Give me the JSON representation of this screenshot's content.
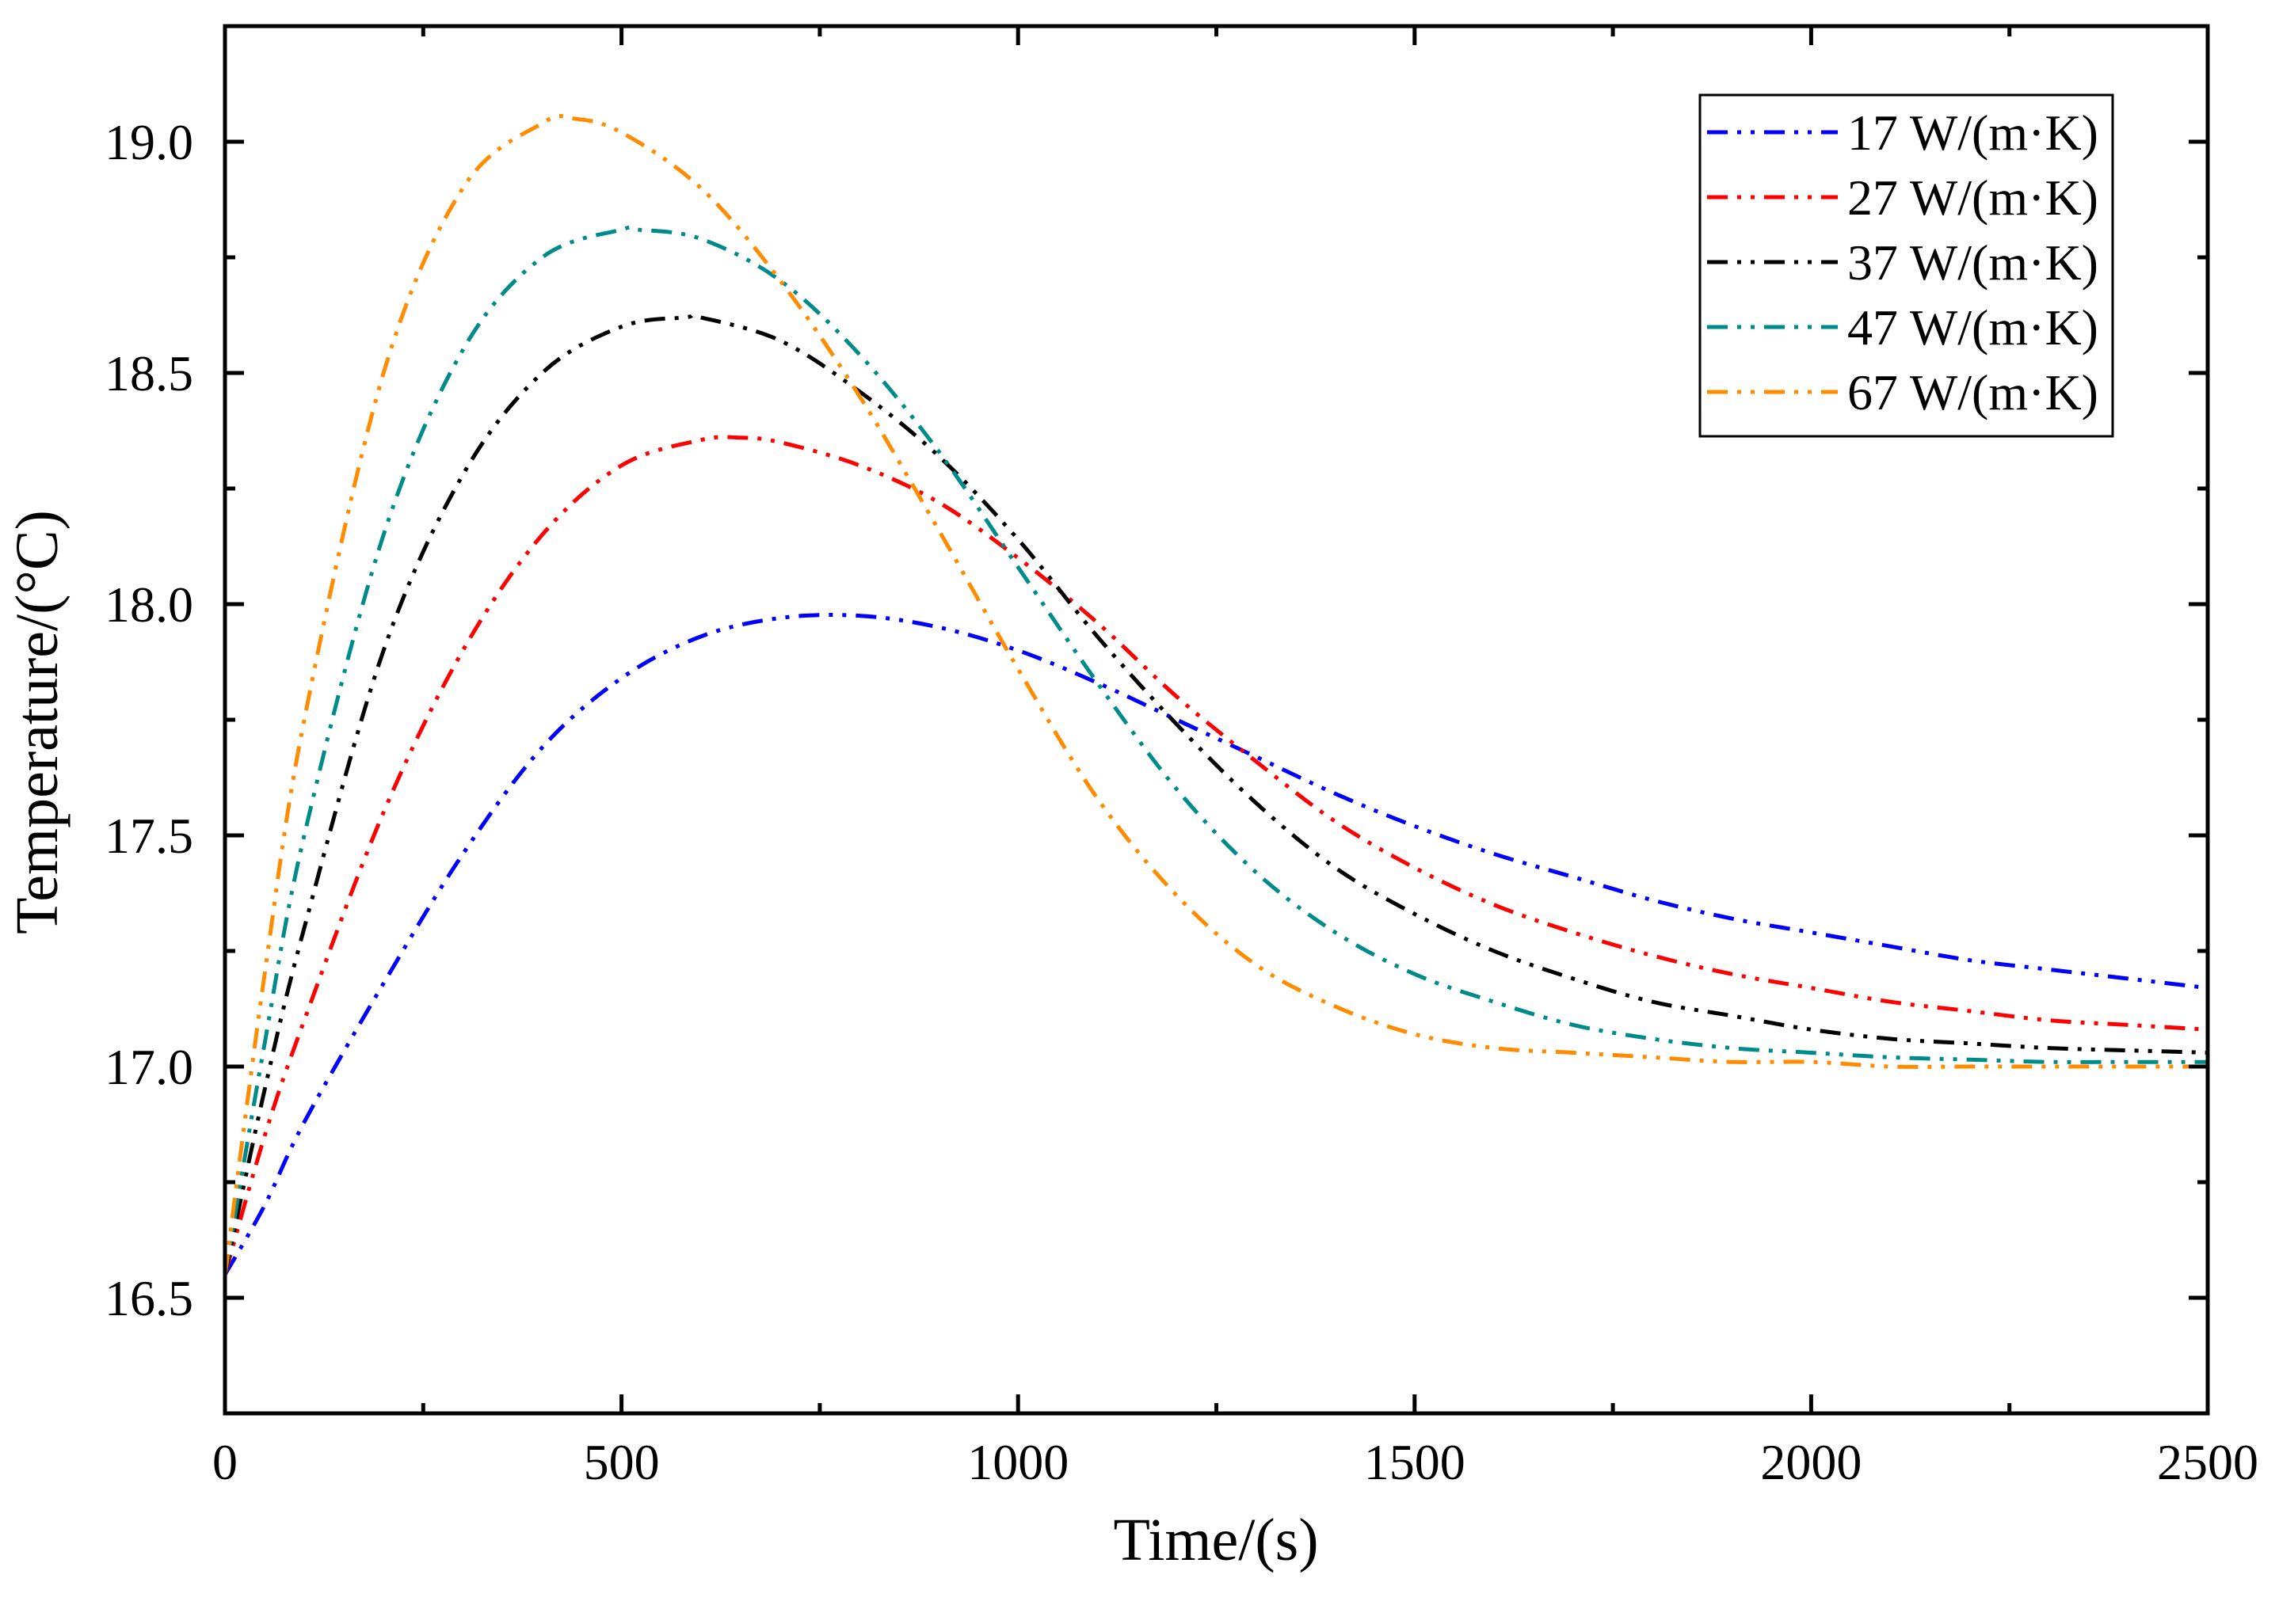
{
  "chart_data": {
    "type": "line",
    "title": "",
    "xlabel": "Time/(s)",
    "ylabel": "Temperature/(°C)",
    "xlim": [
      0,
      2500
    ],
    "ylim": [
      16.25,
      19.25
    ],
    "xticks": [
      0,
      500,
      1000,
      1500,
      2000,
      2500
    ],
    "xtick_labels": [
      "0",
      "500",
      "1000",
      "1500",
      "2000",
      "2500"
    ],
    "yticks": [
      16.5,
      17.0,
      17.5,
      18.0,
      18.5,
      19.0
    ],
    "ytick_labels": [
      "16.5",
      "17.0",
      "17.5",
      "18.0",
      "18.5",
      "19.0"
    ],
    "grid": false,
    "legend_position": "top-right",
    "line_style": "dash-dot",
    "series": [
      {
        "name": "17 W/(m·K)",
        "color": "#0000ff",
        "x": [
          0,
          50,
          100,
          200,
          300,
          400,
          500,
          600,
          700,
          800,
          900,
          1000,
          1100,
          1200,
          1300,
          1400,
          1500,
          1600,
          1700,
          1800,
          1900,
          2000,
          2100,
          2200,
          2300,
          2400,
          2500
        ],
        "y": [
          16.55,
          16.7,
          16.88,
          17.18,
          17.46,
          17.69,
          17.84,
          17.93,
          17.97,
          17.975,
          17.95,
          17.9,
          17.83,
          17.75,
          17.67,
          17.59,
          17.52,
          17.46,
          17.41,
          17.36,
          17.32,
          17.29,
          17.26,
          17.23,
          17.21,
          17.19,
          17.17
        ]
      },
      {
        "name": "27 W/(m·K)",
        "color": "#ff0000",
        "x": [
          0,
          50,
          100,
          200,
          300,
          400,
          500,
          600,
          650,
          700,
          800,
          900,
          1000,
          1100,
          1200,
          1300,
          1400,
          1500,
          1600,
          1700,
          1800,
          1900,
          2000,
          2100,
          2200,
          2300,
          2400,
          2500
        ],
        "y": [
          16.55,
          16.85,
          17.1,
          17.55,
          17.9,
          18.15,
          18.3,
          18.355,
          18.36,
          18.35,
          18.3,
          18.22,
          18.1,
          17.96,
          17.8,
          17.66,
          17.53,
          17.43,
          17.35,
          17.29,
          17.24,
          17.2,
          17.17,
          17.14,
          17.12,
          17.1,
          17.09,
          17.08
        ]
      },
      {
        "name": "37 W/(m·K)",
        "color": "#000000",
        "x": [
          0,
          50,
          100,
          200,
          300,
          400,
          500,
          580,
          600,
          700,
          800,
          900,
          1000,
          1100,
          1200,
          1300,
          1400,
          1500,
          1600,
          1700,
          1800,
          1900,
          2000,
          2100,
          2200,
          2300,
          2400,
          2500
        ],
        "y": [
          16.55,
          16.95,
          17.3,
          17.9,
          18.28,
          18.5,
          18.6,
          18.62,
          18.62,
          18.57,
          18.46,
          18.32,
          18.14,
          17.93,
          17.74,
          17.57,
          17.43,
          17.33,
          17.25,
          17.19,
          17.14,
          17.11,
          17.08,
          17.06,
          17.05,
          17.04,
          17.035,
          17.03
        ]
      },
      {
        "name": "47 W/(m·K)",
        "color": "#008b8b",
        "x": [
          0,
          50,
          100,
          200,
          300,
          400,
          500,
          520,
          600,
          700,
          800,
          900,
          1000,
          1100,
          1200,
          1300,
          1400,
          1500,
          1600,
          1700,
          1800,
          1900,
          2000,
          2100,
          2200,
          2300,
          2400,
          2500
        ],
        "y": [
          16.55,
          17.05,
          17.5,
          18.15,
          18.55,
          18.75,
          18.81,
          18.81,
          18.79,
          18.7,
          18.54,
          18.33,
          18.08,
          17.83,
          17.6,
          17.42,
          17.29,
          17.2,
          17.14,
          17.09,
          17.06,
          17.04,
          17.03,
          17.02,
          17.015,
          17.01,
          17.01,
          17.01
        ]
      },
      {
        "name": "67 W/(m·K)",
        "color": "#ff8c00",
        "x": [
          0,
          50,
          100,
          200,
          300,
          400,
          440,
          500,
          600,
          700,
          800,
          900,
          1000,
          1100,
          1200,
          1300,
          1400,
          1500,
          1600,
          1700,
          1800,
          1900,
          2000,
          2100,
          2200,
          2300,
          2400,
          2500
        ],
        "y": [
          16.55,
          17.2,
          17.75,
          18.5,
          18.9,
          19.04,
          19.05,
          19.02,
          18.9,
          18.7,
          18.45,
          18.16,
          17.86,
          17.58,
          17.37,
          17.22,
          17.13,
          17.07,
          17.04,
          17.03,
          17.02,
          17.01,
          17.01,
          17.0,
          17.0,
          17.0,
          17.0,
          17.0
        ]
      }
    ]
  }
}
